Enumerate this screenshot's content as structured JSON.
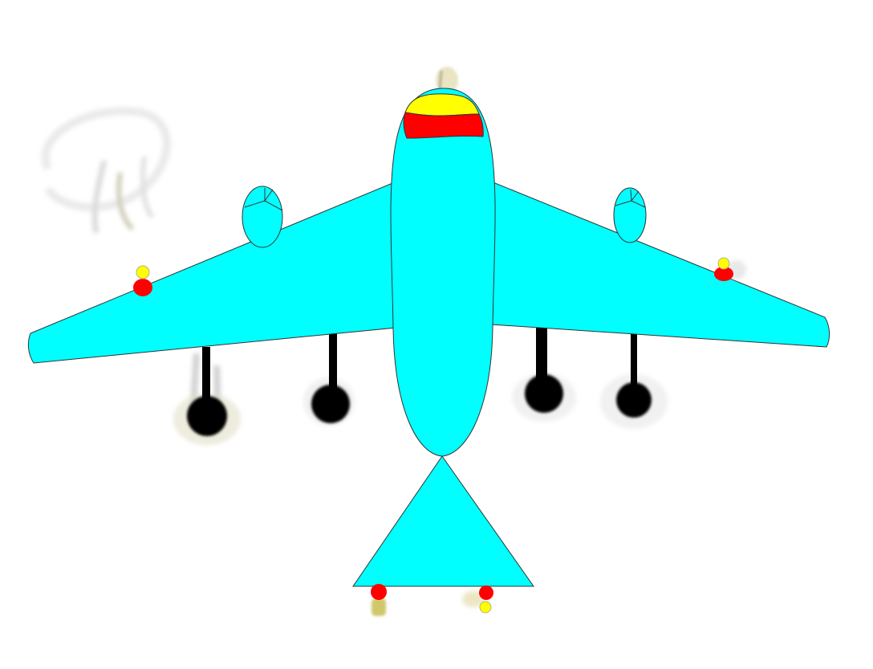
{
  "colors": {
    "background": "#ffffff",
    "airframe": "#00ffff",
    "outline": "#333333",
    "nose_red": "#ff0000",
    "nose_yellow": "#ffff00",
    "wheel": "#000000",
    "smudge": "#b5b08a",
    "signature_ink": "#c8c8c8"
  },
  "icons": {
    "airplane": "airplane-icon",
    "wheel": "wheel-icon",
    "light": "light-icon",
    "engine": "engine-icon"
  }
}
